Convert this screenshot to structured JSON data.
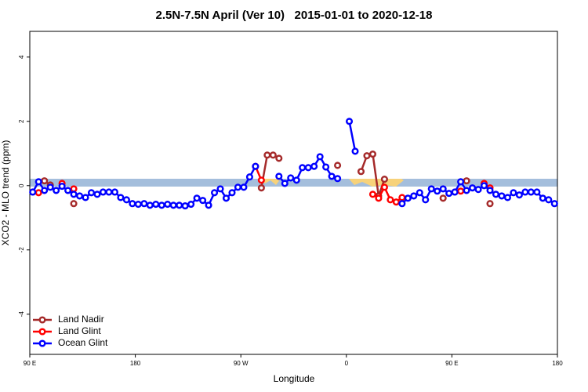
{
  "chart_data": {
    "type": "line",
    "title": "2.5N-7.5N April (Ver 10)   2015-01-01 to 2020-12-18",
    "x_label": "Longitude",
    "y_label": "XCO2 - MLO trend (ppm)",
    "xlim": [
      90,
      540
    ],
    "ylim": [
      -5.25,
      4.8
    ],
    "xticks": [
      {
        "value": 90,
        "label": "90 E"
      },
      180,
      {
        "value": 270,
        "label": "90 W"
      },
      {
        "value": 360,
        "label": "0"
      },
      {
        "value": 450,
        "label": "90 E"
      },
      {
        "value": 540,
        "label": "180"
      }
    ],
    "yticks": [
      -4,
      -2,
      0,
      2,
      4
    ],
    "legend": "lower left",
    "x": [
      92.5,
      97.5,
      102.5,
      107.5,
      112.5,
      117.5,
      122.5,
      127.5,
      132.5,
      137.5,
      142.5,
      147.5,
      152.5,
      157.5,
      162.5,
      167.5,
      172.5,
      177.5,
      182.5,
      187.5,
      192.5,
      197.5,
      202.5,
      207.5,
      212.5,
      217.5,
      222.5,
      227.5,
      232.5,
      237.5,
      242.5,
      247.5,
      252.5,
      257.5,
      262.5,
      267.5,
      272.5,
      277.5,
      282.5,
      287.5,
      292.5,
      297.5,
      302.5,
      307.5,
      312.5,
      317.5,
      322.5,
      327.5,
      332.5,
      337.5,
      342.5,
      347.5,
      352.5,
      357.5,
      362.5,
      367.5,
      372.5,
      377.5,
      382.5,
      387.5,
      392.5,
      397.5,
      402.5,
      407.5,
      412.5,
      417.5,
      422.5,
      427.5,
      432.5,
      437.5,
      442.5,
      447.5,
      452.5,
      457.5,
      462.5,
      467.5,
      472.5,
      477.5,
      482.5,
      487.5,
      492.5,
      497.5,
      502.5,
      507.5,
      512.5,
      517.5,
      522.5,
      527.5,
      532.5,
      537.5
    ],
    "series": [
      {
        "name": "Land Nadir",
        "color": "#a52a2a",
        "values": [
          null,
          null,
          0.15,
          0.02,
          null,
          null,
          null,
          -0.56,
          null,
          null,
          null,
          null,
          null,
          null,
          null,
          null,
          null,
          null,
          null,
          null,
          null,
          null,
          null,
          null,
          null,
          null,
          null,
          null,
          null,
          null,
          null,
          null,
          null,
          null,
          null,
          null,
          null,
          null,
          null,
          -0.07,
          0.95,
          0.95,
          0.85,
          null,
          null,
          null,
          null,
          null,
          null,
          null,
          null,
          null,
          0.63,
          null,
          null,
          null,
          0.44,
          0.93,
          0.98,
          -0.32,
          0.2,
          null,
          null,
          null,
          null,
          null,
          null,
          null,
          null,
          null,
          -0.39,
          null,
          null,
          null,
          0.15,
          null,
          null,
          null,
          -0.56,
          null,
          null,
          null,
          null,
          null,
          null,
          null,
          null,
          null,
          null,
          null
        ]
      },
      {
        "name": "Land Glint",
        "color": "#ff0000",
        "values": [
          null,
          -0.22,
          null,
          null,
          null,
          0.07,
          null,
          -0.1,
          null,
          null,
          null,
          null,
          null,
          null,
          null,
          null,
          null,
          null,
          null,
          null,
          null,
          null,
          null,
          null,
          null,
          null,
          null,
          null,
          null,
          null,
          null,
          null,
          null,
          null,
          null,
          null,
          null,
          null,
          0.6,
          0.17,
          null,
          null,
          null,
          null,
          null,
          null,
          null,
          null,
          null,
          null,
          null,
          null,
          null,
          null,
          null,
          null,
          null,
          null,
          -0.27,
          -0.39,
          -0.05,
          -0.44,
          -0.51,
          -0.37,
          null,
          null,
          null,
          null,
          null,
          null,
          null,
          null,
          null,
          -0.17,
          null,
          null,
          null,
          0.07,
          -0.07,
          null,
          null,
          null,
          null,
          null,
          null,
          null,
          null,
          null,
          null,
          null
        ]
      },
      {
        "name": "Ocean Glint",
        "color": "#0000ff",
        "values": [
          -0.2,
          0.12,
          -0.15,
          -0.05,
          -0.15,
          -0.02,
          -0.15,
          -0.27,
          -0.32,
          -0.37,
          -0.22,
          -0.27,
          -0.2,
          -0.2,
          -0.2,
          -0.37,
          -0.44,
          -0.56,
          -0.58,
          -0.56,
          -0.61,
          -0.58,
          -0.61,
          -0.58,
          -0.61,
          -0.61,
          -0.63,
          -0.58,
          -0.39,
          -0.46,
          -0.61,
          -0.22,
          -0.1,
          -0.39,
          -0.22,
          -0.05,
          -0.05,
          0.27,
          0.6,
          null,
          null,
          null,
          0.29,
          0.07,
          0.24,
          0.17,
          0.56,
          0.56,
          0.6,
          0.9,
          0.58,
          0.29,
          0.22,
          null,
          2.0,
          1.07,
          null,
          null,
          null,
          null,
          null,
          null,
          null,
          -0.56,
          -0.39,
          -0.32,
          -0.22,
          -0.44,
          -0.1,
          -0.17,
          -0.1,
          -0.24,
          -0.2,
          0.12,
          -0.15,
          -0.07,
          -0.12,
          0,
          -0.15,
          -0.27,
          -0.32,
          -0.37,
          -0.22,
          -0.29,
          -0.2,
          -0.2,
          -0.2,
          -0.39,
          -0.44,
          -0.56
        ]
      }
    ]
  }
}
